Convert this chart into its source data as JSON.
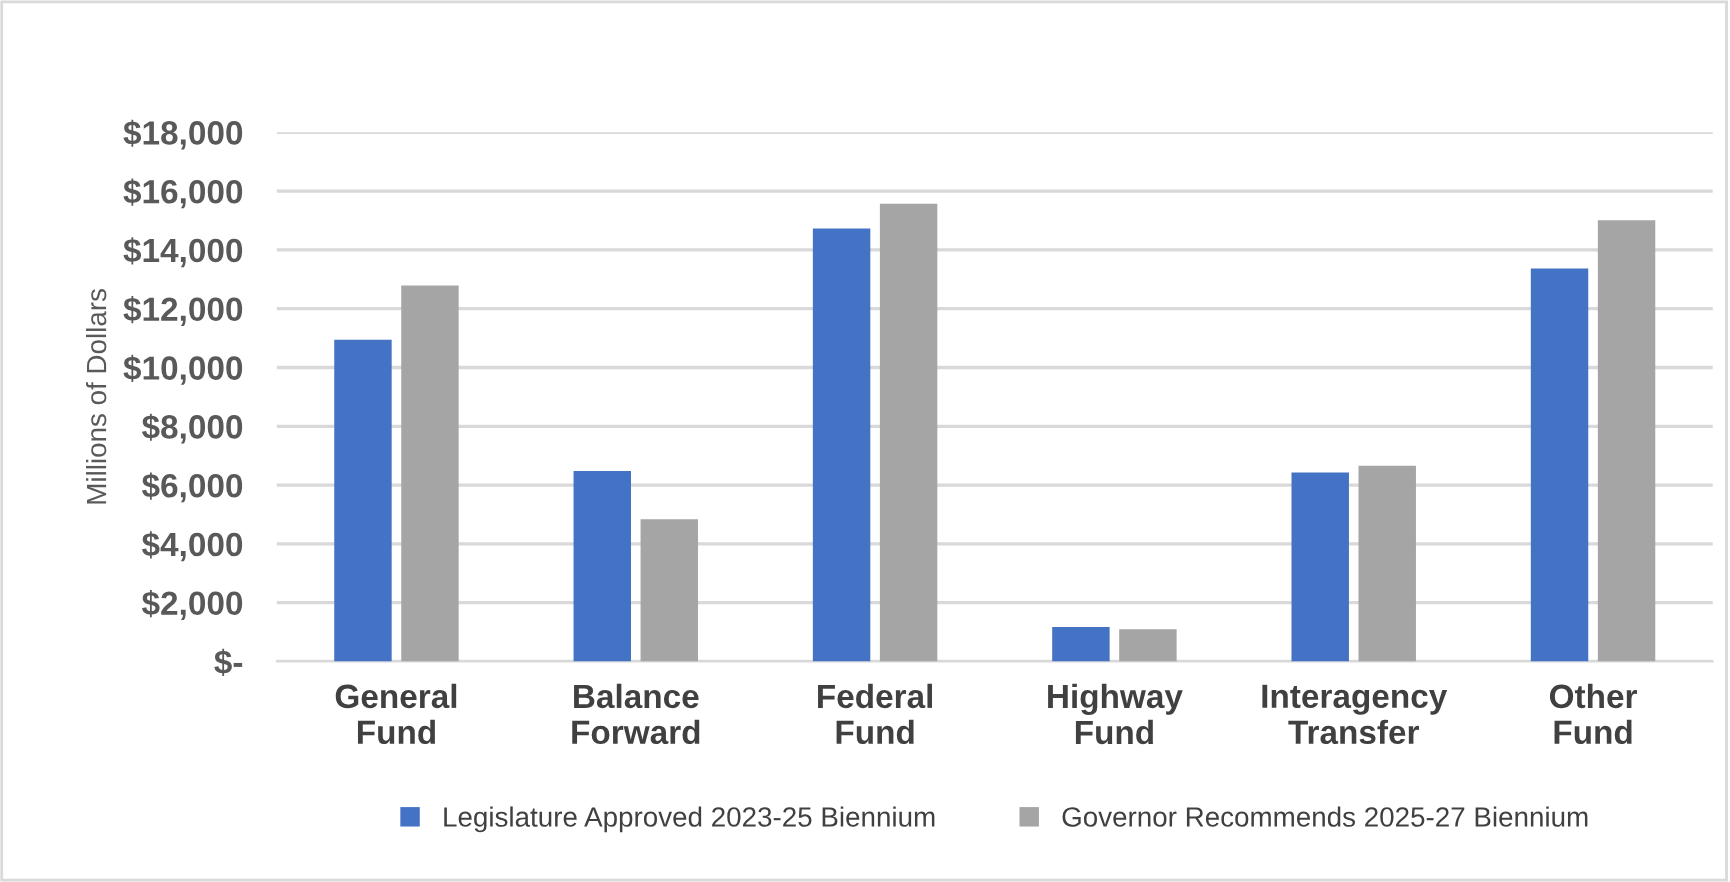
{
  "chart_data": {
    "type": "bar",
    "ylabel": "Millions of Dollars",
    "categories": [
      "General\nFund",
      "Balance\nForward",
      "Federal\nFund",
      "Highway\nFund",
      "Interagency\nTransfer",
      "Other\nFund"
    ],
    "series": [
      {
        "name": "Legislature Approved 2023-25 Biennium",
        "color": "#4472c4",
        "values": [
          10940,
          6480,
          14730,
          1170,
          6430,
          13370
        ]
      },
      {
        "name": "Governor Recommends 2025-27 Biennium",
        "color": "#a5a5a5",
        "values": [
          12790,
          4840,
          15570,
          1100,
          6660,
          15010
        ]
      }
    ],
    "ylim": [
      0,
      18000
    ],
    "yticks": [
      {
        "value": 0,
        "label": "$-"
      },
      {
        "value": 2000,
        "label": "$2,000"
      },
      {
        "value": 4000,
        "label": "$4,000"
      },
      {
        "value": 6000,
        "label": "$6,000"
      },
      {
        "value": 8000,
        "label": "$8,000"
      },
      {
        "value": 10000,
        "label": "$10,000"
      },
      {
        "value": 12000,
        "label": "$12,000"
      },
      {
        "value": 14000,
        "label": "$14,000"
      },
      {
        "value": 16000,
        "label": "$16,000"
      },
      {
        "value": 18000,
        "label": "$18,000"
      }
    ],
    "grid": "y",
    "legend": "bottom"
  }
}
